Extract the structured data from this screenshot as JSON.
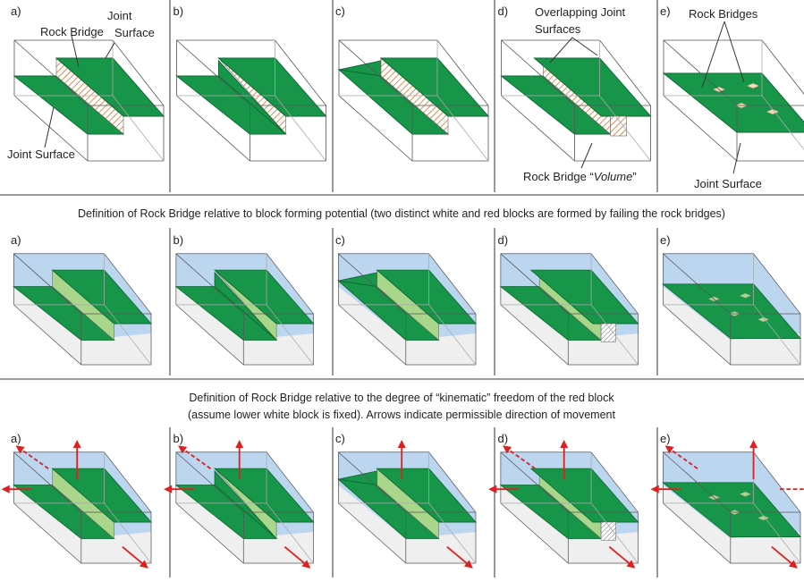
{
  "row1": {
    "labels": [
      "a)",
      "b)",
      "c)",
      "d)",
      "e)"
    ],
    "annotations": {
      "rock_bridge": "Rock Bridge",
      "joint_surface_upper": [
        "Joint",
        "Surface"
      ],
      "joint_surface_lower": "Joint Surface",
      "overlapping": [
        "Overlapping Joint",
        "Surfaces"
      ],
      "rock_bridge_volume": {
        "prefix": "Rock Bridge “",
        "emphasis": "Volume",
        "suffix": "”"
      },
      "rock_bridges": "Rock Bridges",
      "joint_surface_e": "Joint Surface"
    }
  },
  "caption_block_forming": "Definition of Rock Bridge relative to block forming potential (two distinct white and red blocks are formed by failing the rock bridges)",
  "row2": {
    "labels": [
      "a)",
      "b)",
      "c)",
      "d)",
      "e)"
    ]
  },
  "caption_kinematic": [
    "Definition of Rock Bridge relative to the degree of “kinematic” freedom of the red block",
    "(assume lower white block is fixed). Arrows indicate permissible direction of movement"
  ],
  "row3": {
    "labels": [
      "a)",
      "b)",
      "c)",
      "d)",
      "e)"
    ]
  }
}
